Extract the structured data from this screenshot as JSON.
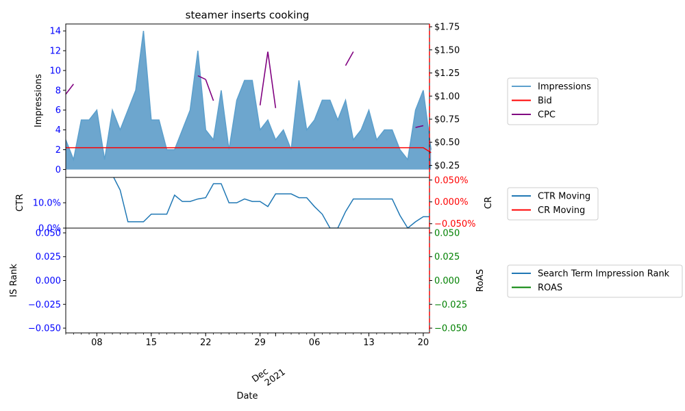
{
  "chart_data": {
    "type": "area",
    "title": "steamer inserts cooking",
    "xlabel": "Date",
    "x_month_label": [
      "Dec",
      "2021"
    ],
    "x_tick_labels": [
      "08",
      "15",
      "22",
      "29",
      "06",
      "13",
      "20"
    ],
    "x_tick_days": [
      4,
      11,
      18,
      25,
      32,
      39,
      46
    ],
    "x_range_days": [
      0,
      46.8
    ],
    "month_boundary_day": 27,
    "colors": {
      "impressions": "#1f77b4",
      "bid": "#ff0000",
      "cpc": "#800080",
      "ctr": "#1f77b4",
      "cr": "#ff0000",
      "is_rank": "#1f77b4",
      "roas": "#008000",
      "left_ticks": "#0000ff",
      "right_ticks_cr": "#ff0000",
      "right_ticks_roas": "#008000",
      "vline": "#ff0000"
    },
    "panels": [
      {
        "id": "top",
        "ylabel_left": "Impressions",
        "ylim_left": [
          -0.8,
          14.7
        ],
        "yticks_left": [
          "0",
          "2",
          "4",
          "6",
          "8",
          "10",
          "12",
          "14"
        ],
        "yticks_left_values": [
          0,
          2,
          4,
          6,
          8,
          10,
          12,
          14
        ],
        "ylim_right": [
          0.12,
          1.78
        ],
        "yticks_right": [
          "$0.25",
          "$0.50",
          "$0.75",
          "$1.00",
          "$1.25",
          "$1.50",
          "$1.75"
        ],
        "yticks_right_values": [
          0.25,
          0.5,
          0.75,
          1.0,
          1.25,
          1.5,
          1.75
        ],
        "series": [
          {
            "name": "Impressions",
            "kind": "area",
            "values": [
              3,
              1,
              5,
              5,
              6,
              1,
              6,
              4,
              6,
              8,
              14,
              5,
              5,
              2,
              2,
              4,
              6,
              12,
              4,
              3,
              8,
              2,
              7,
              9,
              9,
              4,
              5,
              3,
              4,
              2,
              9,
              4,
              5,
              7,
              7,
              5,
              7,
              3,
              4,
              6,
              3,
              4,
              4,
              2,
              1,
              6,
              8,
              2
            ]
          },
          {
            "name": "Bid",
            "kind": "line",
            "values": [
              2.2,
              2.2,
              2.2,
              2.2,
              2.2,
              2.2,
              2.2,
              2.2,
              2.2,
              2.2,
              2.2,
              2.2,
              2.2,
              2.2,
              2.2,
              2.2,
              2.2,
              2.2,
              2.2,
              2.2,
              2.2,
              2.2,
              2.2,
              2.2,
              2.2,
              2.2,
              2.2,
              2.2,
              2.2,
              2.2,
              2.2,
              2.2,
              2.2,
              2.2,
              2.2,
              2.2,
              2.2,
              2.2,
              2.2,
              2.2,
              2.2,
              2.2,
              2.2,
              2.2,
              2.2,
              2.2,
              2.2,
              1.7
            ]
          },
          {
            "name": "CPC",
            "kind": "line-gaps",
            "axis": "right",
            "values": [
              1.02,
              1.13,
              null,
              null,
              null,
              null,
              null,
              null,
              null,
              null,
              null,
              null,
              null,
              null,
              null,
              null,
              null,
              1.22,
              1.18,
              0.95,
              null,
              null,
              null,
              null,
              null,
              0.9,
              1.48,
              0.87,
              null,
              null,
              null,
              null,
              null,
              null,
              null,
              null,
              1.33,
              1.48,
              null,
              null,
              null,
              null,
              null,
              null,
              null,
              0.66,
              0.68,
              null
            ]
          }
        ]
      },
      {
        "id": "mid",
        "ylabel_left": "CTR",
        "ylabel_right": "CR",
        "ylim_left": [
          0,
          0.2
        ],
        "yticks_left": [
          "0.0%",
          "10.0%"
        ],
        "yticks_left_values": [
          0,
          0.1
        ],
        "ylim_right": [
          -0.06,
          0.056
        ],
        "yticks_right": [
          "−0.050%",
          "0.000%",
          "0.050%"
        ],
        "yticks_right_values": [
          -0.05,
          0.0,
          0.05
        ],
        "series": [
          {
            "name": "CTR Moving",
            "kind": "line",
            "values": [
              null,
              null,
              null,
              null,
              null,
              null,
              0.21,
              0.15,
              0.025,
              0.025,
              0.025,
              0.055,
              0.055,
              0.055,
              0.13,
              0.105,
              0.105,
              0.115,
              0.12,
              0.175,
              0.175,
              0.1,
              0.1,
              0.115,
              0.105,
              0.105,
              0.085,
              0.135,
              0.135,
              0.135,
              0.12,
              0.12,
              0.085,
              0.055,
              0.0,
              0.0,
              0.065,
              0.115,
              0.115,
              0.115,
              0.115,
              0.115,
              0.115,
              0.05,
              0.0,
              0.025,
              0.045,
              0.045
            ]
          },
          {
            "name": "CR Moving",
            "kind": "line",
            "axis": "right",
            "values": []
          }
        ]
      },
      {
        "id": "bot",
        "ylabel_left": "IS Rank",
        "ylabel_right": "RoAS",
        "ylim_left": [
          -0.055,
          0.055
        ],
        "yticks_left": [
          "−0.050",
          "−0.025",
          "0.000",
          "0.025",
          "0.050"
        ],
        "yticks_left_values": [
          -0.05,
          -0.025,
          0.0,
          0.025,
          0.05
        ],
        "ylim_right": [
          -0.055,
          0.055
        ],
        "yticks_right": [
          "−0.050",
          "−0.025",
          "0.000",
          "0.025",
          "0.050"
        ],
        "yticks_right_values": [
          -0.05,
          -0.025,
          0.0,
          0.025,
          0.05
        ],
        "series": [
          {
            "name": "Search Term Impression Rank",
            "kind": "line",
            "values": []
          },
          {
            "name": "ROAS",
            "kind": "line",
            "axis": "right",
            "values": []
          }
        ]
      }
    ],
    "legends": [
      {
        "panel": "top",
        "placement": "right",
        "entries": [
          {
            "label": "Impressions",
            "color": "#5b9fcc"
          },
          {
            "label": "Bid",
            "color": "#ff0000"
          },
          {
            "label": "CPC",
            "color": "#800080"
          }
        ]
      },
      {
        "panel": "mid",
        "placement": "right",
        "entries": [
          {
            "label": "CTR Moving",
            "color": "#1f77b4"
          },
          {
            "label": "CR Moving",
            "color": "#ff0000"
          }
        ]
      },
      {
        "panel": "bot",
        "placement": "right",
        "entries": [
          {
            "label": "Search Term Impression Rank",
            "color": "#1f77b4"
          },
          {
            "label": "ROAS",
            "color": "#008000"
          }
        ]
      }
    ]
  }
}
